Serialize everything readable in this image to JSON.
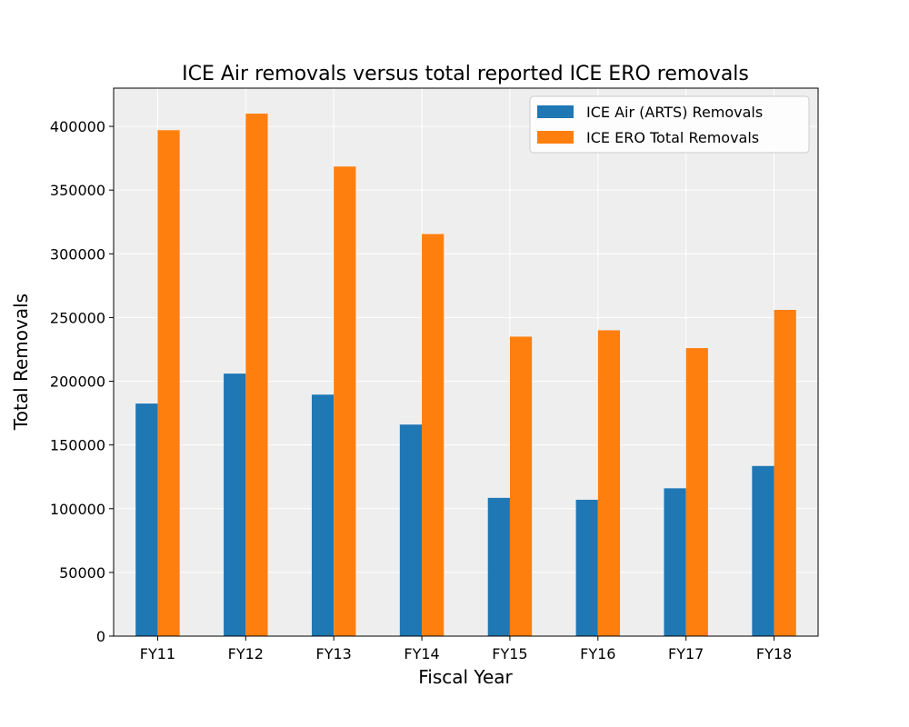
{
  "chart_data": {
    "type": "bar",
    "title": "ICE Air removals versus total reported ICE ERO removals",
    "xlabel": "Fiscal Year",
    "ylabel": "Total Removals",
    "categories": [
      "FY11",
      "FY12",
      "FY13",
      "FY14",
      "FY15",
      "FY16",
      "FY17",
      "FY18"
    ],
    "series": [
      {
        "name": "ICE Air (ARTS) Removals",
        "color": "#1f77b4",
        "values": [
          182500,
          206000,
          189500,
          166000,
          108500,
          107000,
          116000,
          133500
        ]
      },
      {
        "name": "ICE ERO Total Removals",
        "color": "#ff7f0e",
        "values": [
          397000,
          410000,
          368500,
          315500,
          235000,
          240000,
          226000,
          256000
        ]
      }
    ],
    "ylim": [
      0,
      430000
    ],
    "yticks": [
      0,
      50000,
      100000,
      150000,
      200000,
      250000,
      300000,
      350000,
      400000
    ],
    "ytick_labels": [
      "0",
      "50000",
      "100000",
      "150000",
      "200000",
      "250000",
      "300000",
      "350000",
      "400000"
    ],
    "grid": true,
    "legend_position": "top-right",
    "plot_background": "#eeeeee"
  }
}
